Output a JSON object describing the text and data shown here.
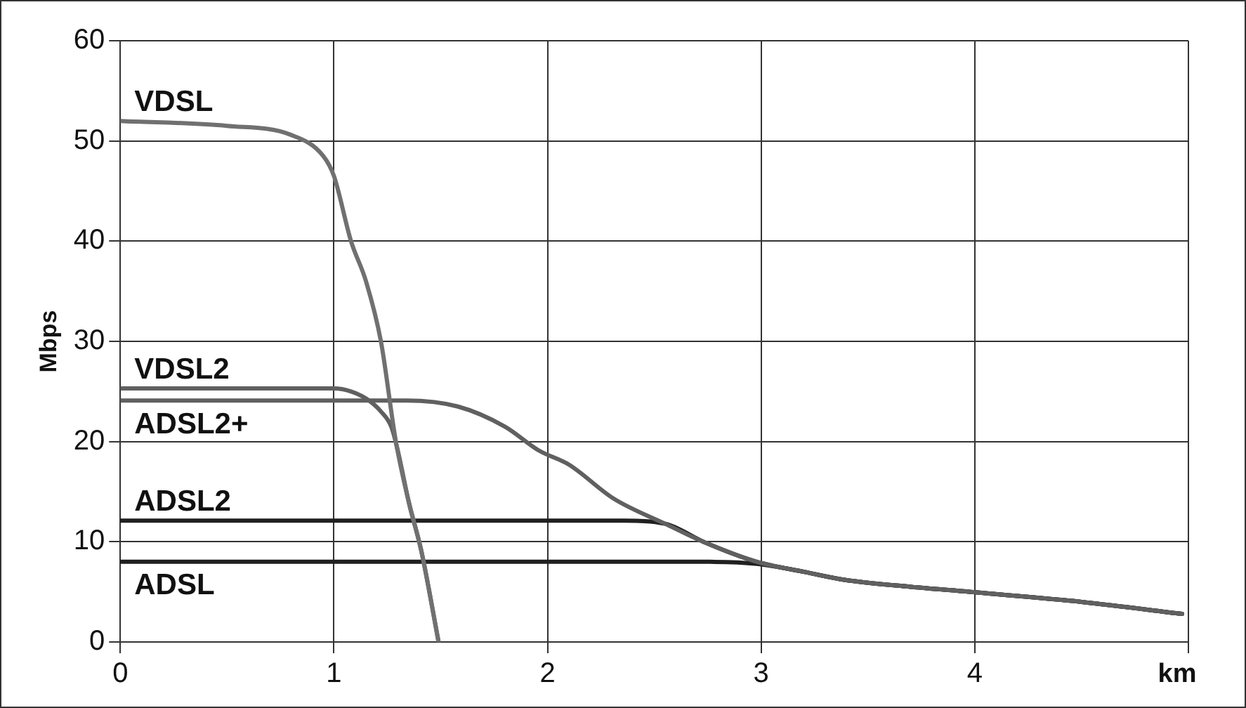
{
  "chart_data": {
    "type": "line",
    "xlabel": "km",
    "ylabel": "Mbps",
    "xlim": [
      0,
      5
    ],
    "xticks": [
      0,
      1,
      2,
      3,
      4,
      {
        "value": 5,
        "label": null
      }
    ],
    "ylim": [
      0,
      60
    ],
    "yticks": [
      0,
      10,
      20,
      30,
      40,
      50,
      60
    ],
    "grid": true,
    "legend": false,
    "marker": "none",
    "line_style": "solid",
    "series": [
      {
        "name": "VDSL",
        "color": "#707070",
        "x": [
          0,
          0.5,
          0.8,
          0.95,
          1.0,
          1.08,
          1.15,
          1.22,
          1.29,
          1.35,
          1.41,
          1.49
        ],
        "values": [
          52,
          51.5,
          50.6,
          48.5,
          46.5,
          40,
          36,
          30,
          20,
          14,
          9,
          0
        ]
      },
      {
        "name": "VDSL2",
        "color": "#606060",
        "x": [
          0,
          1.0,
          1.08,
          1.15,
          1.22,
          1.27,
          1.3,
          1.35,
          1.41,
          1.49
        ],
        "values": [
          25.3,
          25.3,
          25,
          24.3,
          23,
          21.4,
          19,
          14,
          9,
          0
        ]
      },
      {
        "name": "ADSL2+",
        "color": "#606060",
        "x": [
          0,
          1.34,
          1.58,
          1.8,
          1.96,
          2.1,
          2.31,
          2.55,
          2.74,
          2.98,
          3.2,
          3.39,
          3.7,
          3.98,
          4.5,
          4.97
        ],
        "values": [
          24.1,
          24.1,
          23.5,
          21.5,
          19.1,
          17.7,
          14.3,
          11.8,
          9.9,
          8.0,
          7.0,
          6.2,
          5.5,
          5.0,
          4.0,
          2.8
        ]
      },
      {
        "name": "ADSL2",
        "color": "#202020",
        "x": [
          0,
          2.36,
          2.55,
          2.74,
          2.98,
          3.2,
          3.39,
          3.7,
          3.98,
          4.5,
          4.97
        ],
        "values": [
          12.1,
          12.1,
          11.8,
          9.9,
          8.0,
          7.0,
          6.2,
          5.5,
          5.0,
          4.0,
          2.8
        ]
      },
      {
        "name": "ADSL",
        "color": "#202020",
        "x": [
          0,
          2.76,
          2.98,
          3.2,
          3.39,
          3.7,
          3.98,
          4.5,
          4.97
        ],
        "values": [
          8.0,
          8.0,
          7.8,
          7.0,
          6.2,
          5.5,
          5.0,
          4.0,
          2.8
        ]
      }
    ]
  }
}
